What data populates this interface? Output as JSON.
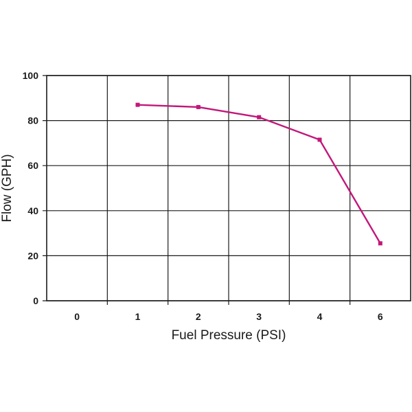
{
  "chart_data": {
    "type": "line",
    "title": "",
    "xlabel": "Fuel Pressure (PSI)",
    "ylabel": "Flow (GPH)",
    "categories": [
      "0",
      "1",
      "2",
      "3",
      "4",
      "6"
    ],
    "series": [
      {
        "values": [
          null,
          87,
          86,
          81.5,
          71.5,
          25.5
        ],
        "color": "#c2177a"
      }
    ],
    "yticks": [
      "0",
      "20",
      "40",
      "60",
      "80",
      "100"
    ],
    "ylim": [
      0,
      100
    ],
    "grid": true,
    "legend": "none"
  }
}
